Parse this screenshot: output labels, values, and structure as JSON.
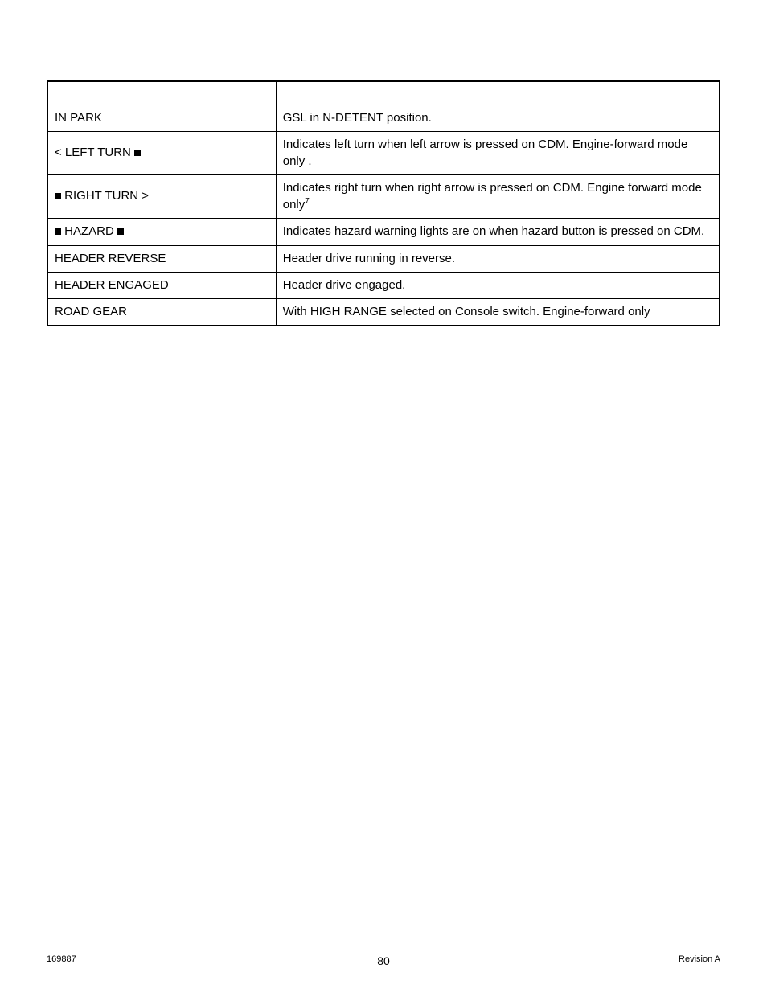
{
  "table": {
    "col_widths_pct": [
      34,
      66
    ],
    "rows": [
      {
        "label_plain": "IN PARK",
        "label_html": "IN PARK",
        "desc": "GSL in N-DETENT position."
      },
      {
        "label_plain": "< LEFT TURN ■",
        "label_html": "< LEFT TURN <span class=\"sq\"></span>",
        "desc": "Indicates left turn when left arrow is pressed on CDM. Engine-forward mode only ."
      },
      {
        "label_plain": "■ RIGHT TURN >",
        "label_html": "<span class=\"sq\"></span> RIGHT TURN >",
        "desc": "Indicates right turn when right arrow is pressed on CDM. Engine forward mode only",
        "desc_superscript": "7"
      },
      {
        "label_plain": "■ HAZARD ■",
        "label_html": "<span class=\"sq\"></span> HAZARD <span class=\"sq\"></span>",
        "desc": "Indicates hazard warning lights are on when hazard button is pressed on CDM."
      },
      {
        "label_plain": "HEADER REVERSE",
        "label_html": "HEADER REVERSE",
        "desc": "Header drive running in reverse."
      },
      {
        "label_plain": "HEADER ENGAGED",
        "label_html": "HEADER ENGAGED",
        "desc": "Header drive engaged."
      },
      {
        "label_plain": "ROAD GEAR",
        "label_html": "ROAD GEAR",
        "desc": "With HIGH RANGE selected on Console switch.  Engine-forward only"
      }
    ]
  },
  "footer": {
    "doc_number": "169887",
    "page_number": "80",
    "revision": "Revision  A"
  },
  "colors": {
    "text": "#000000",
    "background": "#ffffff",
    "border": "#000000"
  }
}
